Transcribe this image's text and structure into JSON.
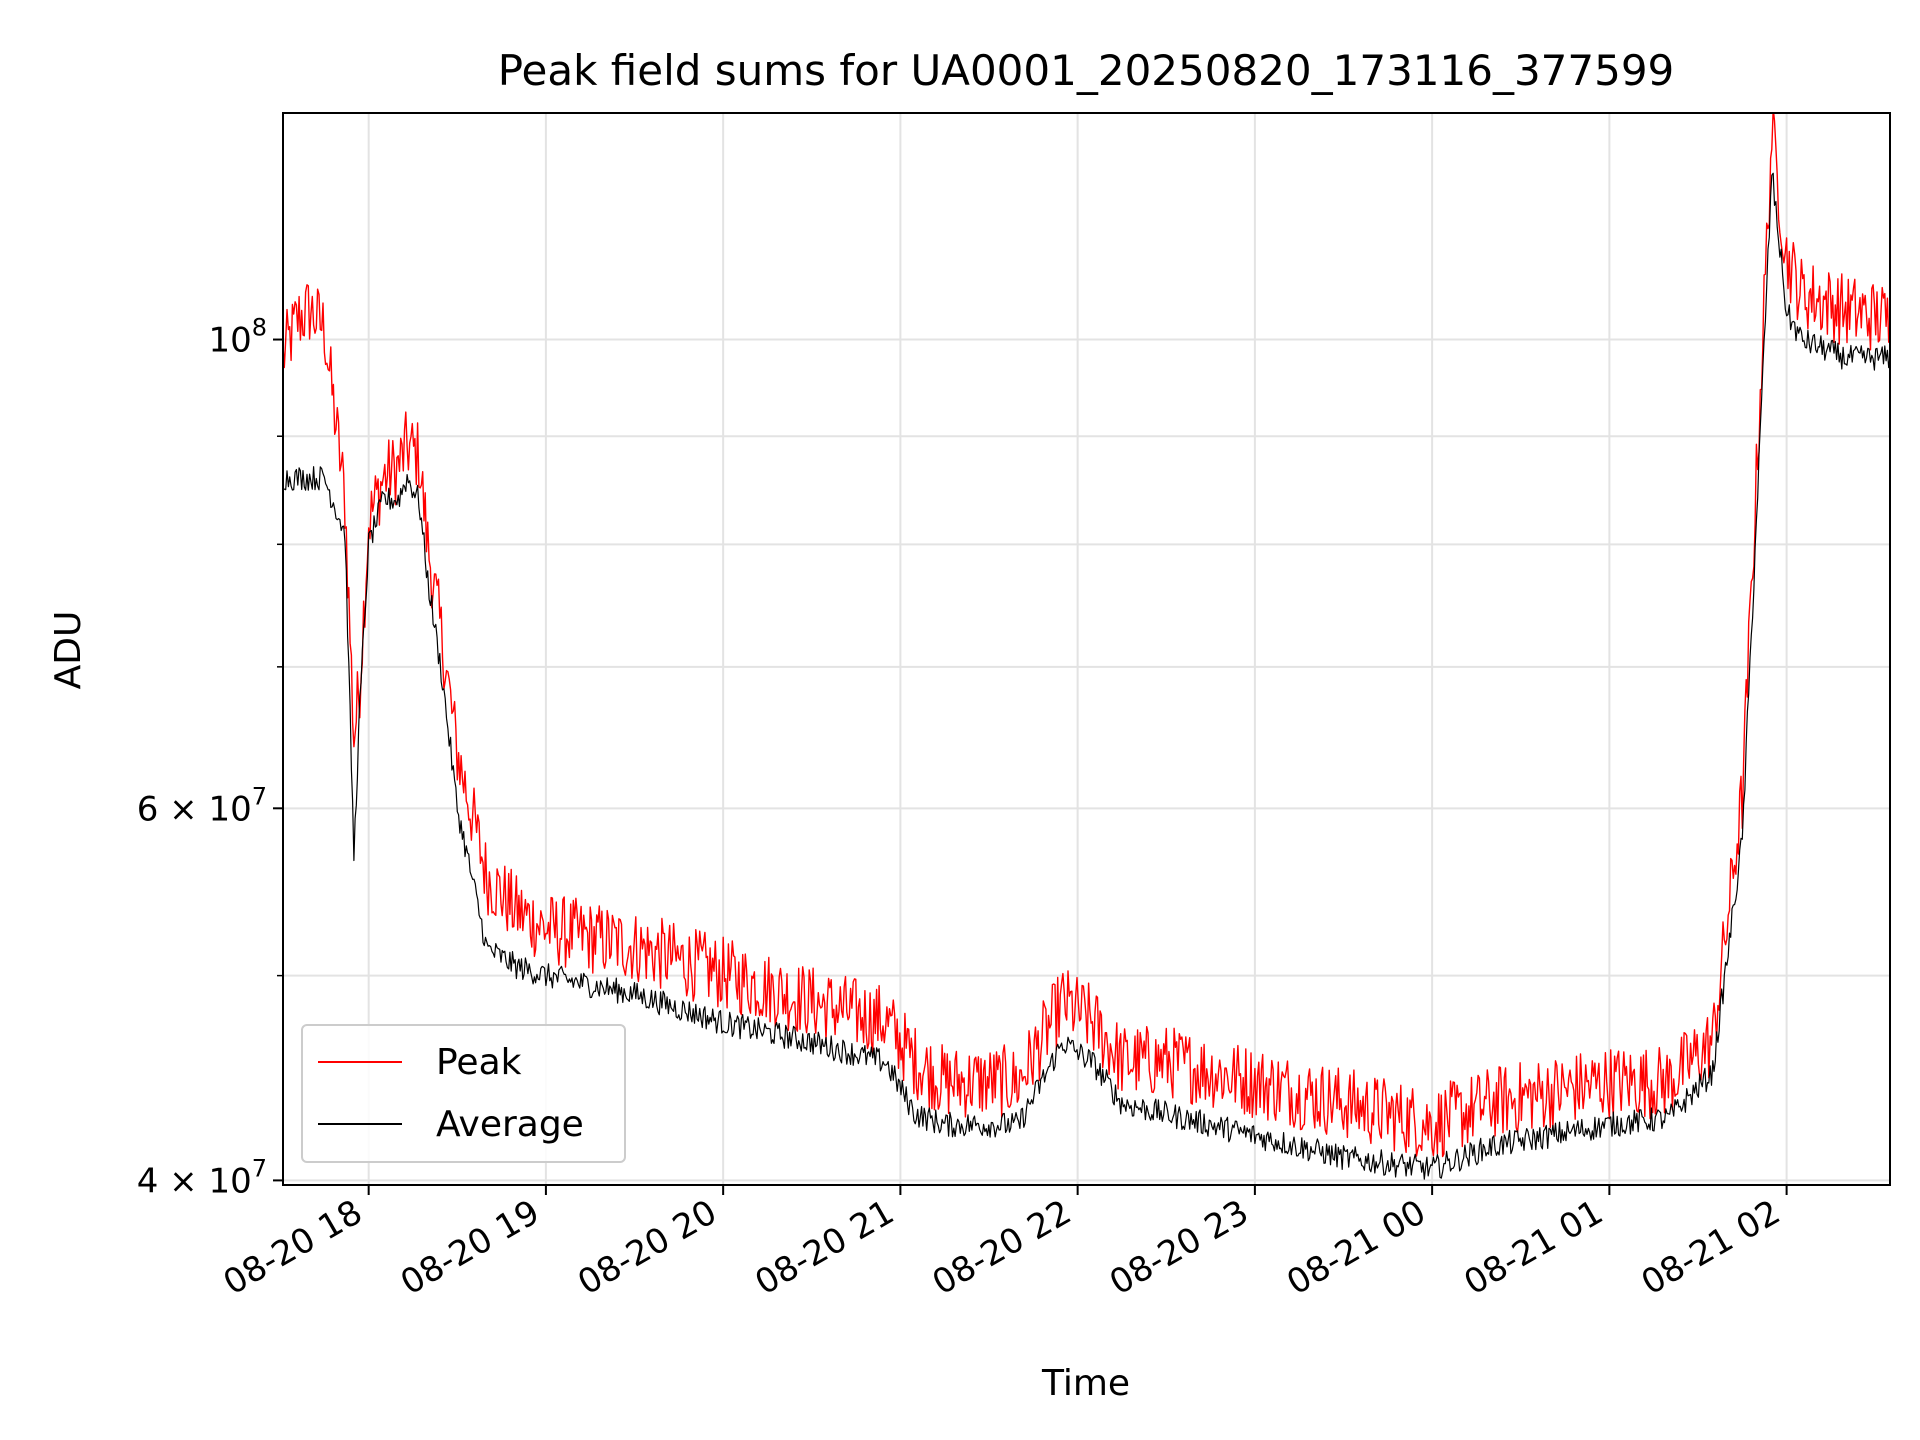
{
  "chart_data": {
    "type": "line",
    "title": "Peak field sums for UA0001_20250820_173116_377599",
    "xlabel": "Time",
    "ylabel": "ADU",
    "yscale": "log",
    "xlim": [
      "2025-08-20 17:31",
      "2025-08-21 02:35"
    ],
    "ylim": [
      39800000,
      128000000
    ],
    "grid": true,
    "legend": "lower-left",
    "x_ticks": [
      {
        "t": "2025-08-20 18:00",
        "label": "08-20 18"
      },
      {
        "t": "2025-08-20 19:00",
        "label": "08-20 19"
      },
      {
        "t": "2025-08-20 20:00",
        "label": "08-20 20"
      },
      {
        "t": "2025-08-20 21:00",
        "label": "08-20 21"
      },
      {
        "t": "2025-08-20 22:00",
        "label": "08-20 22"
      },
      {
        "t": "2025-08-20 23:00",
        "label": "08-20 23"
      },
      {
        "t": "2025-08-21 00:00",
        "label": "08-21 00"
      },
      {
        "t": "2025-08-21 01:00",
        "label": "08-21 01"
      },
      {
        "t": "2025-08-21 02:00",
        "label": "08-21 02"
      }
    ],
    "y_ticks": [
      {
        "v": 40000000,
        "label_base": "4 × 10",
        "label_exp": "7"
      },
      {
        "v": 60000000,
        "label_base": "6 × 10",
        "label_exp": "7"
      },
      {
        "v": 100000000,
        "label_base": "10",
        "label_exp": "8"
      }
    ],
    "y_minor_ticks": [
      50000000,
      70000000,
      80000000,
      90000000
    ],
    "series": [
      {
        "name": "Peak",
        "color": "#ff0000",
        "x": [
          "2025-08-20 17:31",
          "2025-08-20 17:36",
          "2025-08-20 17:40",
          "2025-08-20 17:45",
          "2025-08-20 17:52",
          "2025-08-20 17:55",
          "2025-08-20 17:57",
          "2025-08-20 18:00",
          "2025-08-20 18:05",
          "2025-08-20 18:10",
          "2025-08-20 18:13",
          "2025-08-20 18:17",
          "2025-08-20 18:20",
          "2025-08-20 18:25",
          "2025-08-20 18:30",
          "2025-08-20 18:40",
          "2025-08-20 18:50",
          "2025-08-20 19:00",
          "2025-08-20 19:30",
          "2025-08-20 20:00",
          "2025-08-20 20:30",
          "2025-08-20 20:55",
          "2025-08-20 21:05",
          "2025-08-20 21:15",
          "2025-08-20 21:40",
          "2025-08-20 21:55",
          "2025-08-20 22:05",
          "2025-08-20 22:15",
          "2025-08-20 22:30",
          "2025-08-20 23:00",
          "2025-08-20 23:30",
          "2025-08-21 00:00",
          "2025-08-21 00:20",
          "2025-08-21 00:40",
          "2025-08-21 01:00",
          "2025-08-21 01:20",
          "2025-08-21 01:35",
          "2025-08-21 01:45",
          "2025-08-21 01:55",
          "2025-08-21 02:00",
          "2025-08-21 02:05",
          "2025-08-21 02:20",
          "2025-08-21 02:35"
        ],
        "y": [
          97000000,
          101000000,
          102000000,
          100000000,
          83000000,
          64000000,
          68000000,
          81000000,
          85000000,
          86000000,
          88000000,
          87000000,
          79000000,
          71000000,
          63000000,
          55000000,
          53000000,
          52000000,
          51000000,
          49500000,
          48000000,
          47000000,
          45000000,
          44000000,
          44000000,
          48000000,
          47000000,
          45000000,
          45000000,
          44000000,
          43000000,
          42000000,
          43000000,
          43500000,
          44000000,
          44000000,
          46000000,
          60000000,
          124000000,
          108000000,
          104000000,
          102000000,
          101000000
        ]
      },
      {
        "name": "Average",
        "color": "#000000",
        "x": [
          "2025-08-20 17:31",
          "2025-08-20 17:36",
          "2025-08-20 17:40",
          "2025-08-20 17:45",
          "2025-08-20 17:52",
          "2025-08-20 17:55",
          "2025-08-20 17:57",
          "2025-08-20 18:00",
          "2025-08-20 18:05",
          "2025-08-20 18:10",
          "2025-08-20 18:13",
          "2025-08-20 18:17",
          "2025-08-20 18:20",
          "2025-08-20 18:25",
          "2025-08-20 18:30",
          "2025-08-20 18:40",
          "2025-08-20 18:50",
          "2025-08-20 19:00",
          "2025-08-20 19:30",
          "2025-08-20 20:00",
          "2025-08-20 20:30",
          "2025-08-20 20:55",
          "2025-08-20 21:05",
          "2025-08-20 21:15",
          "2025-08-20 21:40",
          "2025-08-20 21:55",
          "2025-08-20 22:05",
          "2025-08-20 22:15",
          "2025-08-20 22:30",
          "2025-08-20 23:00",
          "2025-08-20 23:30",
          "2025-08-21 00:00",
          "2025-08-21 00:20",
          "2025-08-21 00:40",
          "2025-08-21 01:00",
          "2025-08-21 01:20",
          "2025-08-21 01:35",
          "2025-08-21 01:45",
          "2025-08-21 01:55",
          "2025-08-21 02:00",
          "2025-08-21 02:05",
          "2025-08-21 02:20",
          "2025-08-21 02:35"
        ],
        "y": [
          86000000,
          86000000,
          86000000,
          86000000,
          81000000,
          57000000,
          67000000,
          80000000,
          84000000,
          84000000,
          86000000,
          84000000,
          77000000,
          69000000,
          60000000,
          51500000,
          50500000,
          50000000,
          49000000,
          47500000,
          46500000,
          45500000,
          43000000,
          42500000,
          42500000,
          46500000,
          45500000,
          43500000,
          43000000,
          42000000,
          41000000,
          40500000,
          41500000,
          42000000,
          42500000,
          42800000,
          45000000,
          58000000,
          120000000,
          103000000,
          100000000,
          98000000,
          98000000
        ]
      }
    ]
  }
}
